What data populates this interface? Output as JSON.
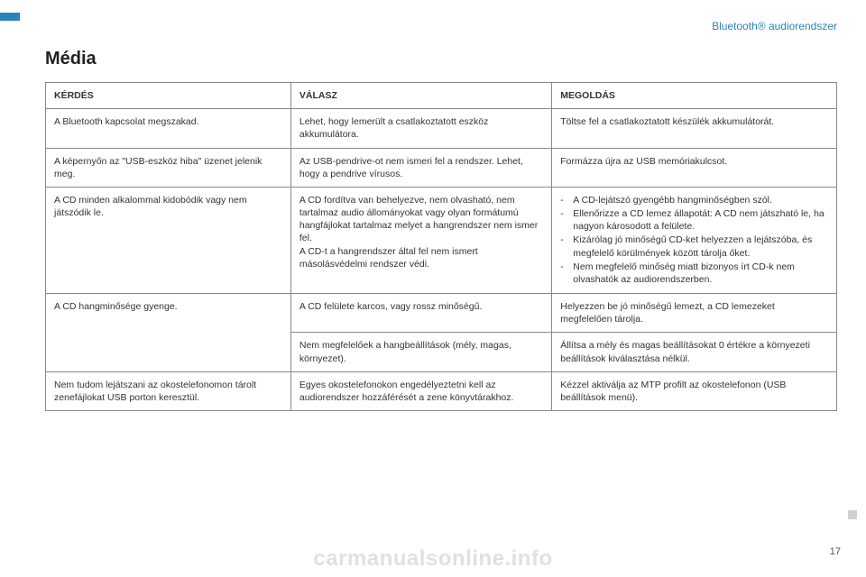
{
  "header": {
    "section_label": "Bluetooth® audiorendszer"
  },
  "title": "Média",
  "table": {
    "headers": {
      "q": "KÉRDÉS",
      "a": "VÁLASZ",
      "s": "MEGOLDÁS"
    },
    "rows": {
      "r1": {
        "q": "A Bluetooth kapcsolat megszakad.",
        "a": "Lehet, hogy lemerült a csatlakoztatott eszköz akkumulátora.",
        "s": "Töltse fel a csatlakoztatott készülék akkumulátorát."
      },
      "r2": {
        "q": "A képernyőn az \"USB-eszköz hiba\" üzenet jelenik meg.",
        "a": "Az USB-pendrive-ot nem ismeri fel a rendszer. Lehet, hogy a pendrive vírusos.",
        "s": "Formázza újra az USB memóriakulcsot."
      },
      "r3": {
        "q": "A CD minden alkalommal kidobódik vagy nem játszódik le.",
        "a": "A CD fordítva van behelyezve, nem olvasható, nem tartalmaz audio állományokat vagy olyan formátumú hangfájlokat tartalmaz melyet a hangrendszer nem ismer fel.\nA CD-t a hangrendszer által fel nem ismert másolásvédelmi rendszer védi.",
        "s_items": {
          "i1": "A CD-lejátszó gyengébb hangminőségben szól.",
          "i2": "Ellenőrizze a CD lemez állapotát: A CD nem játszható le, ha nagyon károsodott a felülete.",
          "i3": "Kizárólag jó minőségű CD-ket helyezzen a lejátszóba, és megfelelő körülmények között tárolja őket.",
          "i4": "Nem megfelelő minőség miatt bizonyos írt CD-k nem olvashatók az audiorendszerben."
        }
      },
      "r4": {
        "q": "A CD hangminősége gyenge.",
        "a1": "A CD felülete karcos, vagy rossz minőségű.",
        "s1": "Helyezzen be jó minőségű lemezt, a CD lemezeket megfelelően tárolja.",
        "a2": "Nem megfelelőek a hangbeállítások (mély, magas, környezet).",
        "s2": "Állítsa a mély és magas beállításokat 0 értékre a környezeti beállítások kiválasztása nélkül."
      },
      "r5": {
        "q": "Nem tudom lejátszani az okostelefonomon tárolt zenefájlokat USB porton keresztül.",
        "a": "Egyes okostelefonokon engedélyeztetni kell az audiorendszer hozzáférését a zene könyvtárakhoz.",
        "s": "Kézzel aktiválja az MTP profilt az okostelefonon (USB beállítások menü)."
      }
    }
  },
  "colors": {
    "accent": "#2a84b5",
    "border": "#888888",
    "text": "#333333",
    "watermark": "rgba(0,0,0,0.12)"
  },
  "footer": {
    "watermark": "carmanualsonline.info",
    "page": "17"
  }
}
